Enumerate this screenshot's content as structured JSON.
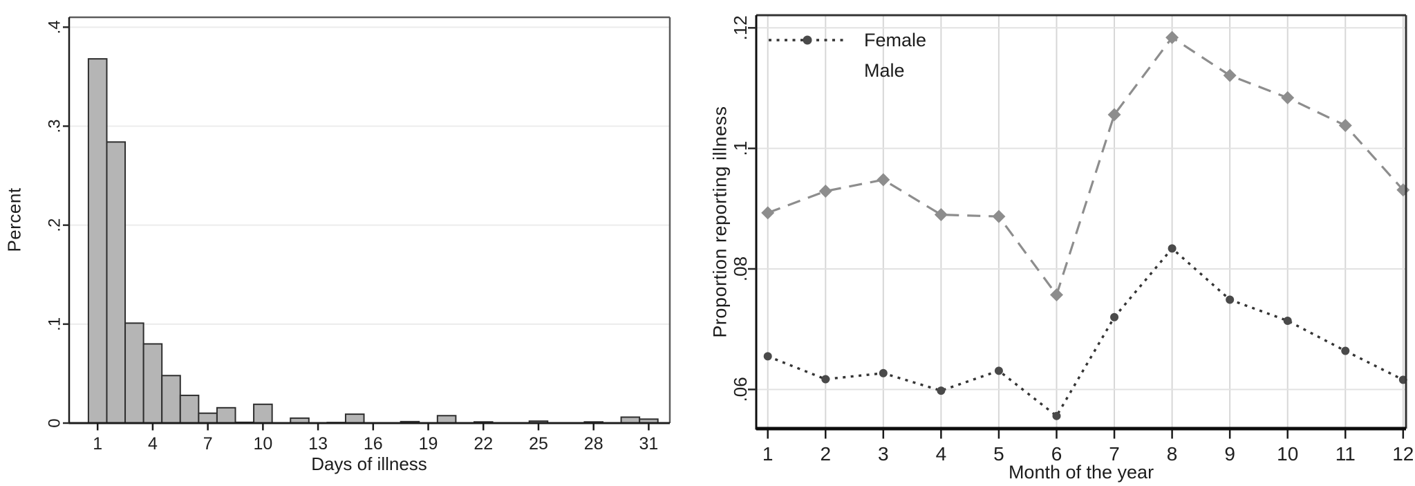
{
  "page": {
    "background": "#ffffff",
    "text_color": "#1c1c1c"
  },
  "chart_data": [
    {
      "type": "bar",
      "title": "",
      "xlabel": "Days of illness",
      "ylabel": "Percent",
      "categories": [
        1,
        2,
        3,
        4,
        5,
        6,
        7,
        8,
        9,
        10,
        11,
        12,
        13,
        14,
        15,
        16,
        17,
        18,
        19,
        20,
        21,
        22,
        23,
        24,
        25,
        26,
        27,
        28,
        29,
        30,
        31
      ],
      "values": [
        0.368,
        0.284,
        0.101,
        0.08,
        0.048,
        0.028,
        0.01,
        0.0155,
        0.0008,
        0.019,
        0,
        0.005,
        0,
        0.0006,
        0.009,
        0,
        0,
        0.0015,
        0,
        0.0075,
        0,
        0.0012,
        0,
        0,
        0.002,
        0,
        0,
        0.0012,
        0,
        0.006,
        0.004
      ],
      "xticks": [
        1,
        4,
        7,
        10,
        13,
        16,
        19,
        22,
        25,
        28,
        31
      ],
      "yticks": [
        0,
        0.1,
        0.2,
        0.3,
        0.4
      ],
      "ytick_labels": [
        "0",
        ".1",
        ".2",
        ".3",
        ".4"
      ],
      "xlim": [
        -0.55,
        32.15
      ],
      "ylim": [
        0,
        0.41
      ],
      "grid": "horizontal",
      "bar_fill": "#b5b5b5",
      "bar_stroke": "#2e2e2e",
      "grid_color": "#ececec"
    },
    {
      "type": "line",
      "title": "",
      "xlabel": "Month of the year",
      "ylabel": "Proportion reporting illness",
      "x": [
        1,
        2,
        3,
        4,
        5,
        6,
        7,
        8,
        9,
        10,
        11,
        12
      ],
      "series": [
        {
          "name": "Female",
          "values": [
            0.0655,
            0.0617,
            0.0627,
            0.0598,
            0.0631,
            0.0556,
            0.072,
            0.0834,
            0.0749,
            0.0714,
            0.0664,
            0.0616
          ],
          "line": "dotted",
          "marker": "circle",
          "color": "#343434",
          "marker_color": "#4a4a4a"
        },
        {
          "name": "Male",
          "values": [
            0.0893,
            0.0929,
            0.0948,
            0.089,
            0.0887,
            0.0757,
            0.1056,
            0.1184,
            0.1121,
            0.1084,
            0.1038,
            0.0931
          ],
          "line": "dashed",
          "marker": "diamond",
          "color": "#8d8d8d",
          "marker_color": "#8d8d8d"
        }
      ],
      "xticks": [
        1,
        2,
        3,
        4,
        5,
        6,
        7,
        8,
        9,
        10,
        11,
        12
      ],
      "yticks": [
        0.06,
        0.08,
        0.1,
        0.12
      ],
      "ytick_labels": [
        ".06",
        ".08",
        ".1",
        ".12"
      ],
      "xlim": [
        0.8,
        12.05
      ],
      "ylim": [
        0.0535,
        0.1221
      ],
      "grid": "both",
      "grid_color_vertical": "#d7d7d7",
      "grid_color_horizontal": "#e2e2e2",
      "legend": {
        "position": "top-left",
        "entries": [
          {
            "label": "Female",
            "sample": true
          },
          {
            "label": "Male",
            "sample": false
          }
        ]
      }
    }
  ]
}
